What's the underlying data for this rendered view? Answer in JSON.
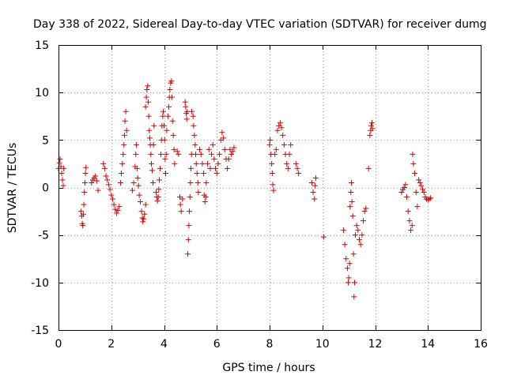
{
  "chart_data": {
    "type": "scatter",
    "title": "Day 338 of 2022, Sidereal Day-to-day VTEC variation (SDTVAR) for receiver dumg",
    "xlabel": "GPS time / hours",
    "ylabel": "SDTVAR / TECUs",
    "xlim": [
      0,
      16
    ],
    "ylim": [
      -15,
      15
    ],
    "xticks": [
      0,
      2,
      4,
      6,
      8,
      10,
      12,
      14,
      16
    ],
    "yticks": [
      -15,
      -10,
      -5,
      0,
      5,
      10,
      15
    ],
    "grid": true,
    "marker": "+",
    "color": "#dd0000",
    "series": [
      {
        "name": "SDTVAR",
        "points": [
          [
            0.0,
            2.0
          ],
          [
            0.03,
            2.6
          ],
          [
            0.06,
            3.0
          ],
          [
            0.09,
            2.2
          ],
          [
            0.12,
            1.5
          ],
          [
            0.15,
            0.8
          ],
          [
            0.18,
            0.2
          ],
          [
            0.2,
            2.0
          ],
          [
            0.85,
            -2.5
          ],
          [
            0.88,
            -3.0
          ],
          [
            0.9,
            -3.8
          ],
          [
            0.92,
            -4.0
          ],
          [
            0.94,
            -2.8
          ],
          [
            0.96,
            -1.8
          ],
          [
            0.98,
            -0.5
          ],
          [
            1.0,
            0.5
          ],
          [
            1.02,
            1.5
          ],
          [
            1.04,
            2.1
          ],
          [
            1.25,
            0.5
          ],
          [
            1.3,
            0.8
          ],
          [
            1.35,
            1.0
          ],
          [
            1.4,
            1.2
          ],
          [
            1.45,
            0.7
          ],
          [
            1.5,
            -0.3
          ],
          [
            1.7,
            2.5
          ],
          [
            1.75,
            2.0
          ],
          [
            1.8,
            1.2
          ],
          [
            1.85,
            0.8
          ],
          [
            1.9,
            0.3
          ],
          [
            1.95,
            -0.2
          ],
          [
            2.0,
            -0.8
          ],
          [
            2.05,
            -1.2
          ],
          [
            2.1,
            -1.8
          ],
          [
            2.15,
            -2.3
          ],
          [
            2.2,
            -2.7
          ],
          [
            2.25,
            -2.4
          ],
          [
            2.3,
            -2.0
          ],
          [
            2.35,
            0.5
          ],
          [
            2.38,
            1.5
          ],
          [
            2.42,
            2.5
          ],
          [
            2.45,
            3.5
          ],
          [
            2.48,
            4.5
          ],
          [
            2.5,
            5.5
          ],
          [
            2.52,
            7.0
          ],
          [
            2.55,
            8.0
          ],
          [
            2.58,
            6.0
          ],
          [
            2.8,
            -0.3
          ],
          [
            2.85,
            0.5
          ],
          [
            2.9,
            2.2
          ],
          [
            2.93,
            3.5
          ],
          [
            2.95,
            4.5
          ],
          [
            2.98,
            2.0
          ],
          [
            3.0,
            1.0
          ],
          [
            3.03,
            0.2
          ],
          [
            3.06,
            -0.8
          ],
          [
            3.1,
            -1.5
          ],
          [
            3.15,
            -2.5
          ],
          [
            3.18,
            -3.2
          ],
          [
            3.2,
            -3.6
          ],
          [
            3.23,
            -3.3
          ],
          [
            3.26,
            -2.8
          ],
          [
            3.3,
            -1.8
          ],
          [
            3.3,
            8.5
          ],
          [
            3.33,
            9.5
          ],
          [
            3.35,
            10.3
          ],
          [
            3.38,
            10.7
          ],
          [
            3.4,
            9.0
          ],
          [
            3.42,
            7.5
          ],
          [
            3.44,
            6.0
          ],
          [
            3.46,
            5.2
          ],
          [
            3.48,
            4.5
          ],
          [
            3.5,
            3.5
          ],
          [
            3.52,
            2.5
          ],
          [
            3.55,
            1.8
          ],
          [
            3.58,
            0.5
          ],
          [
            3.6,
            4.5
          ],
          [
            3.62,
            6.5
          ],
          [
            3.7,
            -0.5
          ],
          [
            3.72,
            -1.0
          ],
          [
            3.75,
            -1.4
          ],
          [
            3.78,
            -1.0
          ],
          [
            3.8,
            -0.2
          ],
          [
            3.82,
            0.8
          ],
          [
            3.85,
            2.0
          ],
          [
            3.88,
            3.5
          ],
          [
            3.9,
            5.0
          ],
          [
            3.92,
            6.5
          ],
          [
            3.95,
            7.5
          ],
          [
            3.97,
            8.0
          ],
          [
            4.0,
            6.5
          ],
          [
            4.02,
            5.0
          ],
          [
            4.04,
            3.0
          ],
          [
            4.06,
            1.5
          ],
          [
            4.08,
            3.5
          ],
          [
            4.1,
            6.0
          ],
          [
            4.15,
            7.5
          ],
          [
            4.18,
            8.5
          ],
          [
            4.2,
            9.5
          ],
          [
            4.22,
            10.3
          ],
          [
            4.25,
            11.0
          ],
          [
            4.28,
            11.2
          ],
          [
            4.3,
            9.5
          ],
          [
            4.32,
            7.0
          ],
          [
            4.35,
            5.5
          ],
          [
            4.38,
            4.0
          ],
          [
            4.4,
            2.5
          ],
          [
            4.5,
            3.8
          ],
          [
            4.55,
            3.5
          ],
          [
            4.6,
            -1.0
          ],
          [
            4.62,
            -1.8
          ],
          [
            4.65,
            -2.5
          ],
          [
            4.7,
            -1.2
          ],
          [
            4.8,
            9.0
          ],
          [
            4.82,
            8.5
          ],
          [
            4.84,
            7.8
          ],
          [
            4.86,
            7.2
          ],
          [
            4.88,
            8.0
          ],
          [
            4.9,
            -7.0
          ],
          [
            4.92,
            -5.5
          ],
          [
            4.94,
            -4.0
          ],
          [
            4.96,
            -2.5
          ],
          [
            4.98,
            -1.0
          ],
          [
            5.0,
            0.5
          ],
          [
            5.02,
            2.0
          ],
          [
            5.04,
            3.5
          ],
          [
            5.05,
            8.0
          ],
          [
            5.1,
            7.5
          ],
          [
            5.12,
            6.5
          ],
          [
            5.15,
            5.5
          ],
          [
            5.18,
            4.5
          ],
          [
            5.2,
            3.5
          ],
          [
            5.22,
            2.5
          ],
          [
            5.25,
            1.5
          ],
          [
            5.28,
            0.5
          ],
          [
            5.3,
            -0.5
          ],
          [
            5.35,
            4.0
          ],
          [
            5.4,
            3.5
          ],
          [
            5.45,
            2.5
          ],
          [
            5.5,
            1.5
          ],
          [
            5.52,
            -0.8
          ],
          [
            5.55,
            -1.5
          ],
          [
            5.58,
            -1.0
          ],
          [
            5.6,
            0.5
          ],
          [
            5.65,
            2.5
          ],
          [
            5.7,
            4.0
          ],
          [
            5.75,
            2.0
          ],
          [
            5.8,
            3.5
          ],
          [
            5.85,
            4.5
          ],
          [
            5.9,
            3.0
          ],
          [
            5.95,
            2.0
          ],
          [
            6.0,
            1.5
          ],
          [
            6.05,
            2.5
          ],
          [
            6.1,
            3.5
          ],
          [
            6.15,
            5.0
          ],
          [
            6.2,
            5.8
          ],
          [
            6.25,
            5.2
          ],
          [
            6.3,
            4.0
          ],
          [
            6.35,
            3.0
          ],
          [
            6.4,
            2.0
          ],
          [
            6.45,
            3.0
          ],
          [
            6.5,
            4.0
          ],
          [
            6.55,
            3.5
          ],
          [
            6.6,
            3.8
          ],
          [
            6.65,
            4.2
          ],
          [
            8.0,
            4.5
          ],
          [
            8.02,
            5.0
          ],
          [
            8.05,
            3.5
          ],
          [
            8.08,
            2.5
          ],
          [
            8.1,
            1.5
          ],
          [
            8.12,
            0.3
          ],
          [
            8.15,
            -0.3
          ],
          [
            8.2,
            3.5
          ],
          [
            8.25,
            4.0
          ],
          [
            8.3,
            6.0
          ],
          [
            8.35,
            6.5
          ],
          [
            8.4,
            6.8
          ],
          [
            8.45,
            6.3
          ],
          [
            8.5,
            5.5
          ],
          [
            8.55,
            4.5
          ],
          [
            8.6,
            3.5
          ],
          [
            8.65,
            2.5
          ],
          [
            8.7,
            2.0
          ],
          [
            8.75,
            3.5
          ],
          [
            8.8,
            4.5
          ],
          [
            9.0,
            2.5
          ],
          [
            9.05,
            2.0
          ],
          [
            9.1,
            1.5
          ],
          [
            9.6,
            0.5
          ],
          [
            9.65,
            -0.5
          ],
          [
            9.7,
            -1.2
          ],
          [
            9.72,
            0.2
          ],
          [
            9.75,
            1.0
          ],
          [
            10.05,
            -5.2
          ],
          [
            10.8,
            -4.5
          ],
          [
            10.85,
            -6.0
          ],
          [
            10.9,
            -7.5
          ],
          [
            10.95,
            -8.5
          ],
          [
            10.98,
            -10.0
          ],
          [
            11.0,
            -9.5
          ],
          [
            11.03,
            -8.0
          ],
          [
            11.05,
            -2.0
          ],
          [
            11.08,
            -0.5
          ],
          [
            11.1,
            0.5
          ],
          [
            11.12,
            -1.5
          ],
          [
            11.15,
            -3.0
          ],
          [
            11.18,
            -7.0
          ],
          [
            11.2,
            -11.5
          ],
          [
            11.22,
            -10.0
          ],
          [
            11.25,
            -5.0
          ],
          [
            11.3,
            -4.0
          ],
          [
            11.35,
            -4.5
          ],
          [
            11.4,
            -5.5
          ],
          [
            11.45,
            -6.0
          ],
          [
            11.5,
            -5.0
          ],
          [
            11.55,
            -3.5
          ],
          [
            11.6,
            -2.5
          ],
          [
            11.65,
            -2.2
          ],
          [
            11.75,
            2.0
          ],
          [
            11.8,
            5.5
          ],
          [
            11.83,
            6.0
          ],
          [
            11.85,
            6.5
          ],
          [
            11.88,
            6.8
          ],
          [
            11.9,
            6.2
          ],
          [
            13.0,
            -0.5
          ],
          [
            13.05,
            -0.2
          ],
          [
            13.1,
            0.0
          ],
          [
            13.15,
            0.3
          ],
          [
            13.2,
            -1.0
          ],
          [
            13.25,
            -2.5
          ],
          [
            13.3,
            -3.5
          ],
          [
            13.35,
            -4.5
          ],
          [
            13.4,
            -4.0
          ],
          [
            13.42,
            3.5
          ],
          [
            13.45,
            2.5
          ],
          [
            13.5,
            1.5
          ],
          [
            13.55,
            -0.5
          ],
          [
            13.6,
            -2.0
          ],
          [
            13.65,
            0.8
          ],
          [
            13.7,
            0.5
          ],
          [
            13.75,
            0.2
          ],
          [
            13.8,
            -0.2
          ],
          [
            13.85,
            -0.5
          ],
          [
            13.9,
            -1.0
          ],
          [
            13.95,
            -1.2
          ],
          [
            14.0,
            -1.3
          ],
          [
            14.05,
            -1.2
          ],
          [
            14.1,
            -1.1
          ]
        ]
      }
    ]
  }
}
